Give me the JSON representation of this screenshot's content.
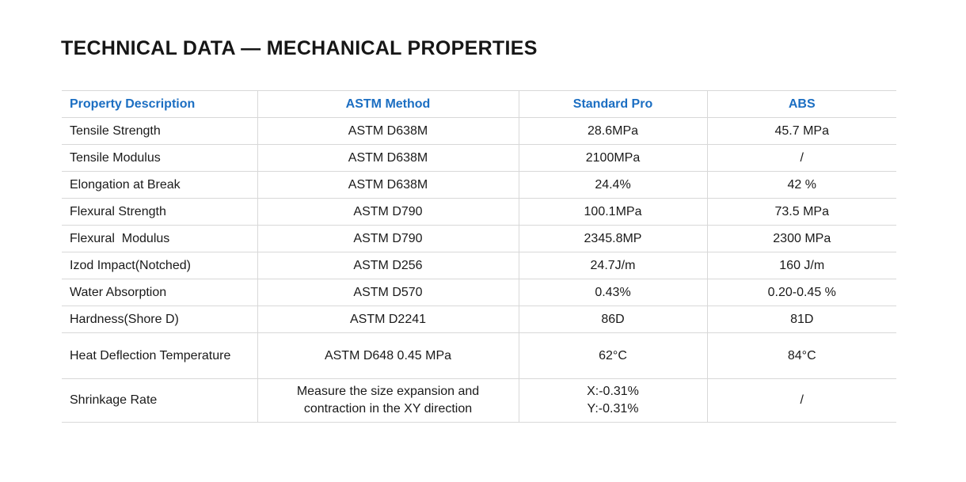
{
  "page": {
    "title": "TECHNICAL DATA — MECHANICAL PROPERTIES"
  },
  "table": {
    "headers": [
      "Property Description",
      "ASTM Method",
      "Standard Pro",
      "ABS"
    ],
    "rows": [
      {
        "property": "Tensile Strength",
        "method": "ASTM D638M",
        "standard_pro": "28.6MPa",
        "abs": "45.7 MPa"
      },
      {
        "property": "Tensile Modulus",
        "method": "ASTM D638M",
        "standard_pro": "2100MPa",
        "abs": "/"
      },
      {
        "property": "Elongation at Break",
        "method": "ASTM D638M",
        "standard_pro": "24.4%",
        "abs": "42 %"
      },
      {
        "property": "Flexural Strength",
        "method": "ASTM D790",
        "standard_pro": "100.1MPa",
        "abs": "73.5 MPa"
      },
      {
        "property": "Flexural  Modulus",
        "method": "ASTM D790",
        "standard_pro": "2345.8MP",
        "abs": "2300 MPa"
      },
      {
        "property": "Izod Impact(Notched)",
        "method": "ASTM D256",
        "standard_pro": "24.7J/m",
        "abs": "160 J/m"
      },
      {
        "property": "Water Absorption",
        "method": "ASTM D570",
        "standard_pro": "0.43%",
        "abs": "0.20-0.45 %"
      },
      {
        "property": "Hardness(Shore D)",
        "method": "ASTM D2241",
        "standard_pro": "86D",
        "abs": "81D"
      },
      {
        "property": "Heat Deflection Temperature",
        "method": "ASTM D648 0.45 MPa",
        "standard_pro": "62°C",
        "abs": "84°C"
      },
      {
        "property": "Shrinkage Rate",
        "method": "Measure the size expansion and contraction in the XY direction",
        "standard_pro": "X:-0.31%\nY:-0.31%",
        "abs": "/"
      }
    ]
  },
  "colors": {
    "accent_blue": "#1b6ec2",
    "body_text": "#1a1a1a",
    "border": "#d8d8d8",
    "background": "#ffffff"
  }
}
